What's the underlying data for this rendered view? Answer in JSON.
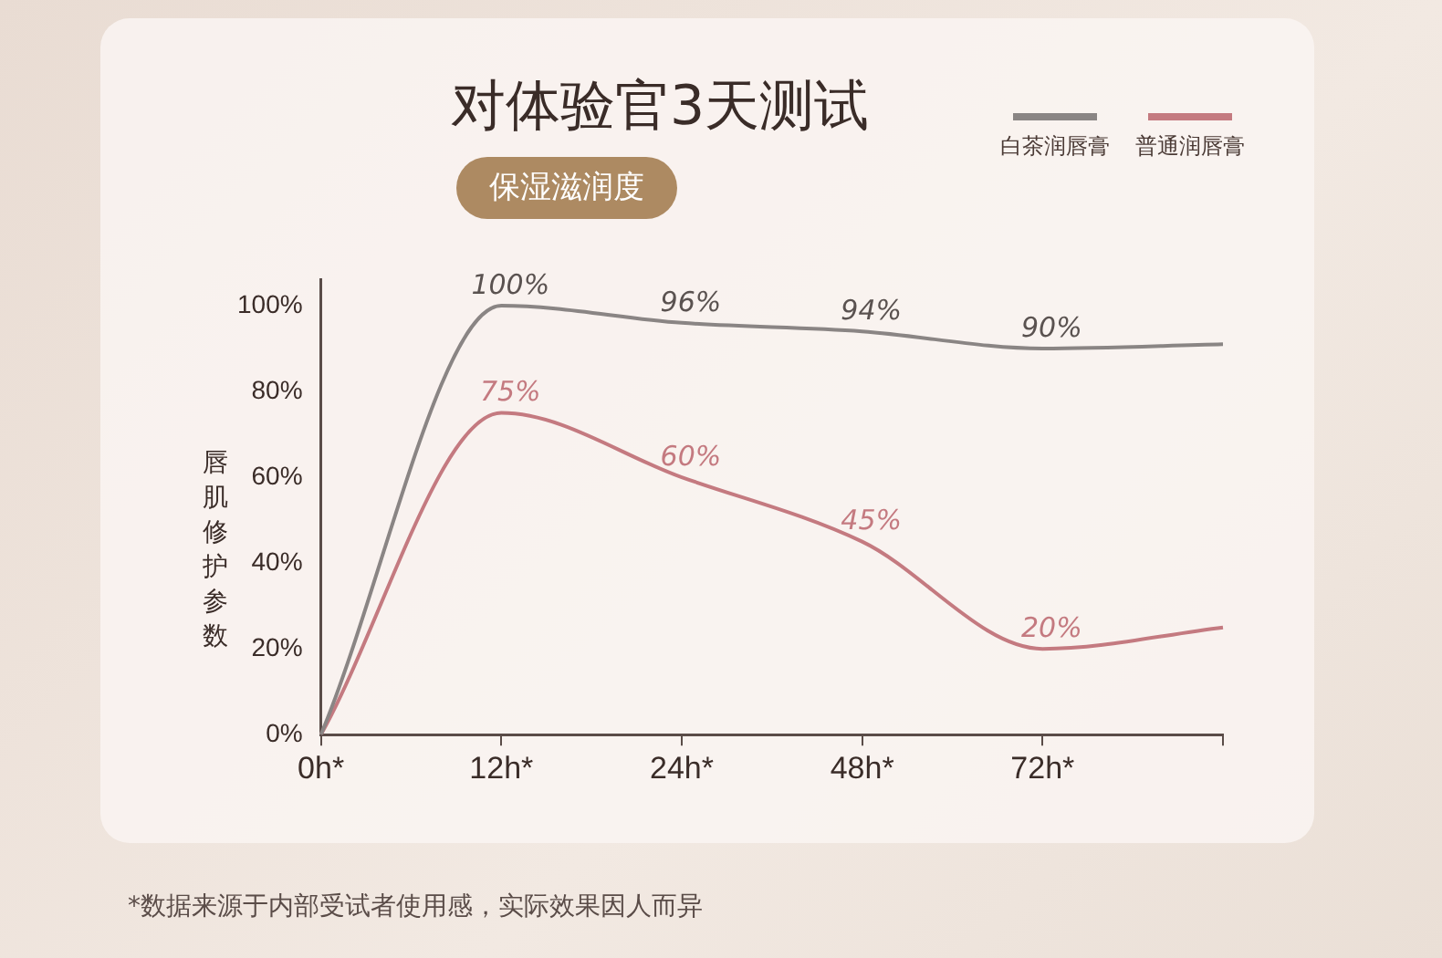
{
  "chart_data": {
    "type": "line",
    "title": "对体验官3天测试",
    "subtitle": "保湿滋润度",
    "ylabel": "唇肌修护参数",
    "categories": [
      "0h*",
      "12h*",
      "24h*",
      "48h*",
      "72h*",
      null
    ],
    "series": [
      {
        "name": "白茶润唇膏",
        "color": "#8a8584",
        "values": [
          0,
          100,
          96,
          94,
          90,
          91
        ]
      },
      {
        "name": "普通润唇膏",
        "color": "#c47a80",
        "values": [
          0,
          75,
          60,
          45,
          20,
          25
        ]
      }
    ],
    "value_labels": [
      [
        null,
        "100%",
        "96%",
        "94%",
        "90%",
        null
      ],
      [
        null,
        "75%",
        "60%",
        "45%",
        "20%",
        null
      ]
    ],
    "ylim": [
      0,
      106
    ],
    "yticks": [
      {
        "value": 0,
        "label": "0%"
      },
      {
        "value": 20,
        "label": "20%"
      },
      {
        "value": 40,
        "label": "40%"
      },
      {
        "value": 60,
        "label": "60%"
      },
      {
        "value": 80,
        "label": "80%"
      },
      {
        "value": 100,
        "label": "100%"
      }
    ],
    "grid": false,
    "legend": "top right",
    "marker": "none",
    "line_style": "solid",
    "annotations": [
      "*数据来源于内部受试者使用感，实际效果因人而异"
    ]
  }
}
